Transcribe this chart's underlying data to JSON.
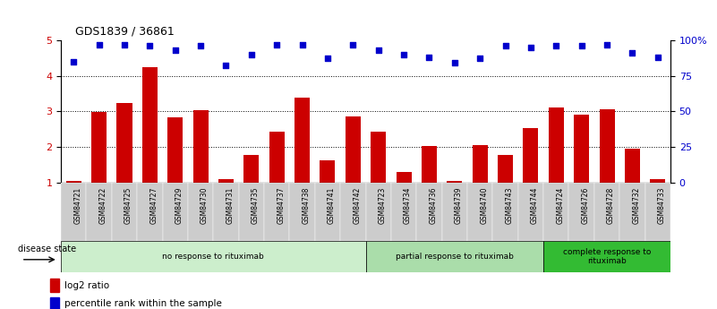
{
  "title": "GDS1839 / 36861",
  "samples": [
    "GSM84721",
    "GSM84722",
    "GSM84725",
    "GSM84727",
    "GSM84729",
    "GSM84730",
    "GSM84731",
    "GSM84735",
    "GSM84737",
    "GSM84738",
    "GSM84741",
    "GSM84742",
    "GSM84723",
    "GSM84734",
    "GSM84736",
    "GSM84739",
    "GSM84740",
    "GSM84743",
    "GSM84744",
    "GSM84724",
    "GSM84726",
    "GSM84728",
    "GSM84732",
    "GSM84733"
  ],
  "log2_ratio": [
    1.05,
    2.98,
    3.22,
    4.25,
    2.82,
    3.02,
    1.08,
    1.78,
    2.42,
    3.38,
    1.62,
    2.85,
    2.42,
    1.28,
    2.02,
    1.05,
    2.05,
    1.78,
    2.52,
    3.1,
    2.9,
    3.05,
    1.95,
    1.08
  ],
  "percentile": [
    85,
    97,
    97,
    96,
    93,
    96,
    82,
    90,
    97,
    97,
    87,
    97,
    93,
    90,
    88,
    84,
    87,
    96,
    95,
    96,
    96,
    97,
    91,
    88
  ],
  "groups": [
    {
      "label": "no response to rituximab",
      "start": 0,
      "end": 12,
      "color": "#cceecc"
    },
    {
      "label": "partial response to rituximab",
      "start": 12,
      "end": 19,
      "color": "#aaddaa"
    },
    {
      "label": "complete response to\nrituximab",
      "start": 19,
      "end": 24,
      "color": "#33bb33"
    }
  ],
  "bar_color": "#cc0000",
  "dot_color": "#0000cc",
  "ylim_left": [
    1,
    5
  ],
  "ylim_right": [
    0,
    100
  ],
  "yticks_left": [
    1,
    2,
    3,
    4,
    5
  ],
  "yticks_right": [
    0,
    25,
    50,
    75,
    100
  ],
  "background_color": "#ffffff",
  "legend_log2": "log2 ratio",
  "legend_pct": "percentile rank within the sample",
  "label_bg_color": "#cccccc"
}
